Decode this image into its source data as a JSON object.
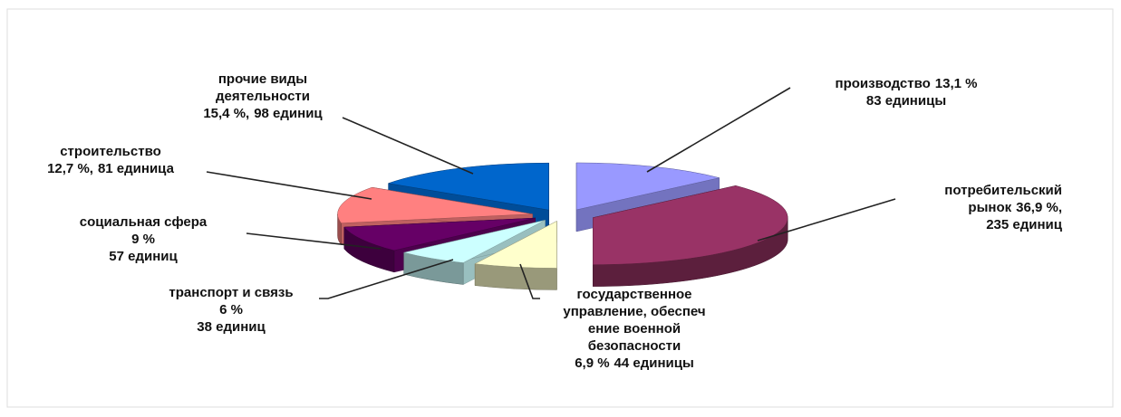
{
  "chart_data": {
    "type": "pie",
    "three_d": true,
    "exploded": true,
    "categories": [
      [
        "производство"
      ],
      [
        "потребительский",
        "рынок"
      ],
      [
        "государственное",
        "управление, обеспеч",
        "ение военной",
        "безопасности"
      ],
      [
        "транспорт и связь"
      ],
      [
        "социальная сфера"
      ],
      [
        "строительство"
      ],
      [
        "прочие виды",
        "деятельности"
      ]
    ],
    "values": [
      13.1,
      36.9,
      6.9,
      6,
      9,
      12.7,
      15.4
    ],
    "value_labels": [
      "13,1 %",
      "36,9 %,",
      "6,9 %",
      "6 %",
      "9 %",
      "12,7 %,",
      "15,4 %,"
    ],
    "counts": [
      83,
      235,
      44,
      38,
      57,
      81,
      98
    ],
    "count_labels": [
      "83 единицы",
      "235 единиц",
      "44 единицы",
      "38 единиц",
      "57 единиц",
      "81 единица",
      "98 единиц"
    ],
    "colors": [
      "#9999ff",
      "#993366",
      "#ffffcc",
      "#ccffff",
      "#660066",
      "#ff8080",
      "#0066cc"
    ]
  }
}
